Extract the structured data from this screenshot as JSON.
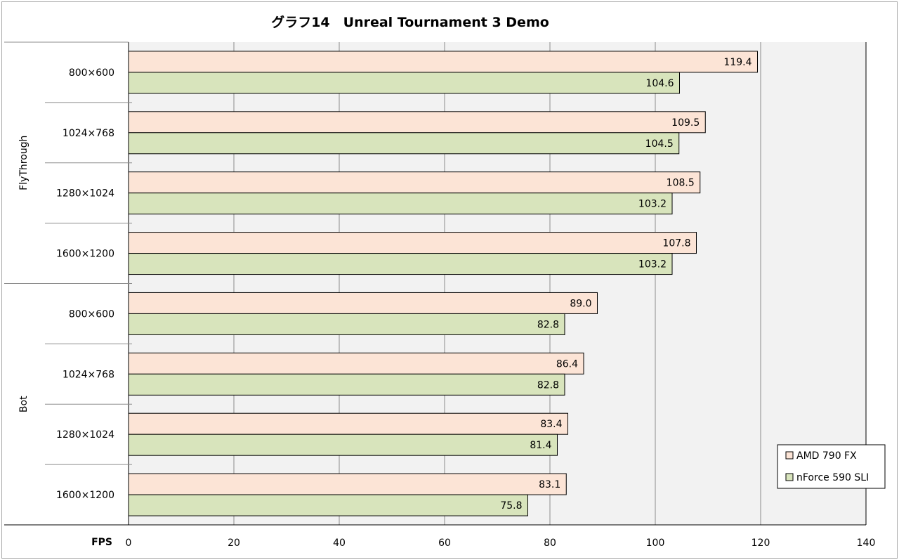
{
  "chart_data": {
    "type": "bar",
    "orientation": "horizontal",
    "title": "グラフ14　Unreal Tournament 3 Demo",
    "xlabel": "FPS",
    "ylabel": "",
    "xlim": [
      0,
      140
    ],
    "xticks": [
      "0",
      "20",
      "40",
      "60",
      "80",
      "100",
      "120",
      "140"
    ],
    "grid": true,
    "legend_position": "bottom-right",
    "groups": [
      {
        "label": "FlyThrough",
        "categories": [
          "800×600",
          "1024×768",
          "1280×1024",
          "1600×1200"
        ]
      },
      {
        "label": "Bot",
        "categories": [
          "800×600",
          "1024×768",
          "1280×1024",
          "1600×1200"
        ]
      }
    ],
    "series": [
      {
        "name": "AMD 790 FX",
        "color": "#fce4d6",
        "values": [
          119.4,
          109.5,
          108.5,
          107.8,
          89.0,
          86.4,
          83.4,
          83.1
        ],
        "value_labels": [
          "119.4",
          "109.5",
          "108.5",
          "107.8",
          "89.0",
          "86.4",
          "83.4",
          "83.1"
        ]
      },
      {
        "name": "nForce 590 SLI",
        "color": "#d8e4bc",
        "values": [
          104.6,
          104.5,
          103.2,
          103.2,
          82.8,
          82.8,
          81.4,
          75.8
        ],
        "value_labels": [
          "104.6",
          "104.5",
          "103.2",
          "103.2",
          "82.8",
          "82.8",
          "81.4",
          "75.8"
        ]
      }
    ],
    "plot_background": "#f2f2f2"
  }
}
